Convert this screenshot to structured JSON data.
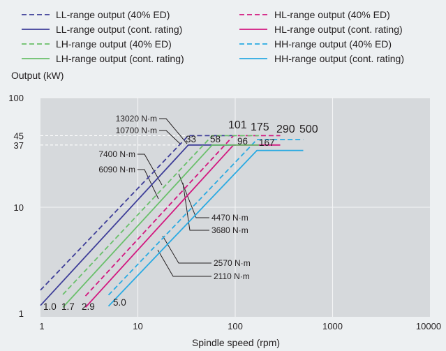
{
  "chart_data": {
    "type": "line",
    "x_scale": "log",
    "y_scale": "log",
    "xlim": [
      1,
      10000
    ],
    "ylim": [
      1,
      100
    ],
    "xlabel": "Spindle speed (rpm)",
    "ylabel": "Output (kW)",
    "x_ticks": [
      "1",
      "10",
      "100",
      "1000",
      "10000"
    ],
    "y_ticks": [
      {
        "value": 100,
        "label": "100"
      },
      {
        "value": 45,
        "label": "45"
      },
      {
        "value": 37,
        "label": "37"
      },
      {
        "value": 10,
        "label": "10"
      },
      {
        "value": 1,
        "label": "1"
      }
    ],
    "reference_lines": [
      45,
      37
    ],
    "legend": {
      "placement": "top",
      "columns": 2
    },
    "series": [
      {
        "name": "LL-range output (40% ED)",
        "color": "#3d3d98",
        "dashed": true,
        "points": [
          [
            1,
            1.75
          ],
          [
            33,
            45
          ],
          [
            101,
            45
          ]
        ]
      },
      {
        "name": "HL-range output (40% ED)",
        "color": "#d2177f",
        "dashed": true,
        "points": [
          [
            2.9,
            1.55
          ],
          [
            96,
            45
          ],
          [
            290,
            45
          ]
        ]
      },
      {
        "name": "LL-range output (cont. rating)",
        "color": "#3d3d98",
        "dashed": false,
        "points": [
          [
            1,
            1.27
          ],
          [
            33,
            37
          ],
          [
            101,
            37
          ]
        ]
      },
      {
        "name": "HL-range output (cont. rating)",
        "color": "#d2177f",
        "dashed": false,
        "points": [
          [
            2.9,
            1.22
          ],
          [
            96,
            37
          ],
          [
            290,
            37
          ]
        ]
      },
      {
        "name": "LH-range output (40% ED)",
        "color": "#69bf6a",
        "dashed": true,
        "points": [
          [
            1.7,
            1.6
          ],
          [
            58,
            45
          ],
          [
            175,
            45
          ]
        ]
      },
      {
        "name": "HH-range output (40% ED)",
        "color": "#2aaae2",
        "dashed": true,
        "points": [
          [
            5.0,
            1.58
          ],
          [
            167,
            41.5
          ],
          [
            500,
            41.5
          ]
        ]
      },
      {
        "name": "LH-range output (cont. rating)",
        "color": "#69bf6a",
        "dashed": false,
        "points": [
          [
            1.7,
            1.22
          ],
          [
            58,
            37
          ],
          [
            175,
            37
          ]
        ]
      },
      {
        "name": "HH-range output (cont. rating)",
        "color": "#2aaae2",
        "dashed": false,
        "points": [
          [
            5.0,
            1.25
          ],
          [
            167,
            33
          ],
          [
            500,
            33
          ]
        ]
      }
    ],
    "speed_labels": [
      {
        "text": "1.0",
        "x": 1.0
      },
      {
        "text": "1.7",
        "x": 1.7
      },
      {
        "text": "2.9",
        "x": 2.9
      },
      {
        "text": "5.0",
        "x": 5.0
      },
      {
        "text": "33",
        "x": 33
      },
      {
        "text": "58",
        "x": 58
      },
      {
        "text": "96",
        "x": 96
      },
      {
        "text": "167",
        "x": 167
      },
      {
        "text": "101",
        "x": 101
      },
      {
        "text": "175",
        "x": 175
      },
      {
        "text": "290",
        "x": 290
      },
      {
        "text": "500",
        "x": 500
      }
    ],
    "torque_annotations": [
      "13020 N·m",
      "10700 N·m",
      "7400 N·m",
      "6090 N·m",
      "4470 N·m",
      "3680 N·m",
      "2570 N·m",
      "2110 N·m"
    ]
  }
}
